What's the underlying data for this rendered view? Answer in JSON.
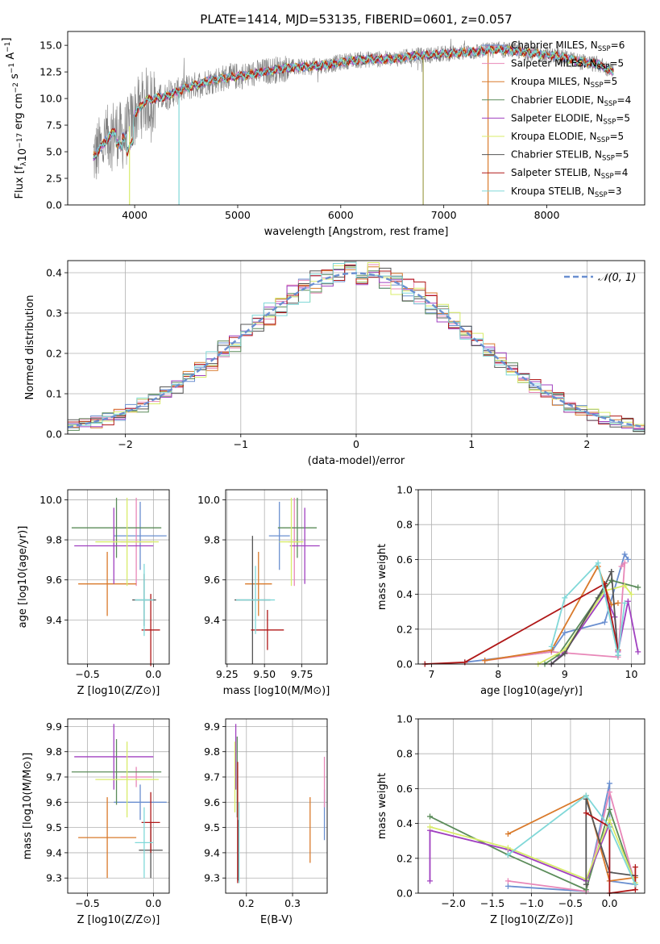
{
  "figure": {
    "title": "PLATE=1414, MJD=53135, FIBERID=0601, z=0.057"
  },
  "colors": {
    "grey_spectrum": "#808080",
    "model": [
      "#6a8fd0",
      "#e887b8",
      "#d97a2b",
      "#5b8c5a",
      "#a040c0",
      "#d8ec6a",
      "#555555",
      "#b01818",
      "#80d8d8"
    ]
  },
  "chart_data": [
    {
      "id": "spectrum",
      "type": "line",
      "title": "PLATE=1414, MJD=53135, FIBERID=0601, z=0.057",
      "xlabel": "wavelength [Angstrom, rest frame]",
      "ylabel": "Flux [f_λ10^-17 erg cm^-2 s^-1 A^-1]",
      "xlim": [
        3350,
        8950
      ],
      "ylim": [
        0,
        16.3
      ],
      "xticks": [
        4000,
        5000,
        6000,
        7000,
        8000
      ],
      "yticks": [
        0.0,
        2.5,
        5.0,
        7.5,
        10.0,
        12.5,
        15.0
      ],
      "grid": false,
      "legend_position": "right",
      "legend": [
        {
          "label": "Chabrier MILES, N",
          "sub": "SSP",
          "tail": "=6",
          "color": "#6a8fd0"
        },
        {
          "label": "Salpeter MILES, N",
          "sub": "SSP",
          "tail": "=5",
          "color": "#e887b8"
        },
        {
          "label": "Kroupa MILES, N",
          "sub": "SSP",
          "tail": "=5",
          "color": "#d97a2b"
        },
        {
          "label": "Chabrier ELODIE, N",
          "sub": "SSP",
          "tail": "=4",
          "color": "#5b8c5a"
        },
        {
          "label": "Salpeter ELODIE, N",
          "sub": "SSP",
          "tail": "=5",
          "color": "#a040c0"
        },
        {
          "label": "Kroupa ELODIE, N",
          "sub": "SSP",
          "tail": "=5",
          "color": "#d8ec6a"
        },
        {
          "label": "Chabrier STELIB, N",
          "sub": "SSP",
          "tail": "=5",
          "color": "#555555"
        },
        {
          "label": "Salpeter STELIB, N",
          "sub": "SSP",
          "tail": "=4",
          "color": "#b01818"
        },
        {
          "label": "Kroupa STELIB, N",
          "sub": "SSP",
          "tail": "=3",
          "color": "#80d8d8"
        }
      ],
      "continuum": {
        "x": [
          3600,
          3700,
          3800,
          3900,
          4000,
          4100,
          4200,
          4300,
          4400,
          4500,
          4700,
          4900,
          5100,
          5300,
          5500,
          5700,
          5900,
          6100,
          6300,
          6500,
          6700,
          6900,
          7100,
          7300,
          7500,
          7700,
          7900,
          8100,
          8300,
          8500,
          8650
        ],
        "y": [
          4.5,
          5.8,
          7.0,
          6.3,
          8.5,
          9.8,
          10.0,
          10.2,
          10.6,
          11.0,
          11.6,
          12.0,
          12.2,
          12.6,
          12.9,
          13.0,
          13.2,
          13.6,
          13.7,
          13.7,
          14.0,
          14.1,
          14.3,
          14.4,
          14.6,
          14.5,
          14.2,
          14.0,
          13.5,
          13.2,
          12.5
        ]
      },
      "drops": [
        {
          "x": 3950,
          "color": "#d8ec6a"
        },
        {
          "x": 4430,
          "color": "#80d8d8"
        },
        {
          "x": 6800,
          "color": "#a0a050"
        },
        {
          "x": 7430,
          "color": "#d97a2b"
        }
      ]
    },
    {
      "id": "residuals",
      "type": "area",
      "xlabel": "(data-model)/error",
      "ylabel": "Normed distribution",
      "xlim": [
        -2.5,
        2.5
      ],
      "ylim": [
        0,
        0.43
      ],
      "xticks": [
        -2,
        -1,
        0,
        1,
        2
      ],
      "xticklabels": [
        "−2",
        "−1",
        "0",
        "1",
        "2"
      ],
      "yticks": [
        0.0,
        0.1,
        0.2,
        0.3,
        0.4
      ],
      "grid": true,
      "legend_position": "top-right",
      "legend": [
        {
          "label": "𝒩(0, 1)",
          "color": "#6a8fd0",
          "dashed": true
        }
      ],
      "bin_width": 0.1
    },
    {
      "id": "age_vs_Z",
      "type": "scatter",
      "xlabel": "Z [log10(Z/Z⊙)]",
      "ylabel": "age  [log10(age/yr)]",
      "xlim": [
        -0.65,
        0.12
      ],
      "ylim": [
        9.18,
        10.05
      ],
      "xticks": [
        -0.5,
        0.0
      ],
      "xticklabels": [
        "−0.5",
        "0.0"
      ],
      "yticks": [
        9.4,
        9.6,
        9.8,
        10.0
      ],
      "grid": true,
      "points": [
        {
          "x": -0.1,
          "xerr": 0.2,
          "y": 9.82,
          "yerr": 0.17,
          "color": "#6a8fd0"
        },
        {
          "x": -0.13,
          "xerr": 0.12,
          "y": 9.79,
          "yerr": 0.22,
          "color": "#e887b8"
        },
        {
          "x": -0.35,
          "xerr": 0.22,
          "y": 9.58,
          "yerr": 0.16,
          "color": "#d97a2b"
        },
        {
          "x": -0.28,
          "xerr": 0.34,
          "y": 9.86,
          "yerr": 0.15,
          "color": "#5b8c5a"
        },
        {
          "x": -0.3,
          "xerr": 0.3,
          "y": 9.77,
          "yerr": 0.19,
          "color": "#a040c0"
        },
        {
          "x": -0.2,
          "xerr": 0.24,
          "y": 9.79,
          "yerr": 0.22,
          "color": "#d8ec6a"
        },
        {
          "x": -0.07,
          "xerr": 0.09,
          "y": 9.5,
          "yerr": 0.13,
          "color": "#555555"
        },
        {
          "x": -0.02,
          "xerr": 0.07,
          "y": 9.35,
          "yerr": 0.18,
          "color": "#b01818"
        },
        {
          "x": -0.07,
          "xerr": 0.07,
          "y": 9.5,
          "yerr": 0.18,
          "color": "#80d8d8"
        }
      ]
    },
    {
      "id": "age_vs_mass",
      "type": "scatter",
      "xlabel": "mass [log10(M/M⊙)]",
      "ylabel": "",
      "xlim": [
        9.24,
        9.92
      ],
      "ylim": [
        9.18,
        10.05
      ],
      "xticks": [
        9.25,
        9.5,
        9.75
      ],
      "yticks": [
        9.4,
        9.6,
        9.8,
        10.0
      ],
      "grid": true,
      "points": [
        {
          "x": 9.6,
          "xerr": 0.07,
          "y": 9.82,
          "yerr": 0.17,
          "color": "#6a8fd0"
        },
        {
          "x": 9.7,
          "xerr": 0.04,
          "y": 9.79,
          "yerr": 0.22,
          "color": "#e887b8"
        },
        {
          "x": 9.46,
          "xerr": 0.09,
          "y": 9.58,
          "yerr": 0.16,
          "color": "#d97a2b"
        },
        {
          "x": 9.72,
          "xerr": 0.13,
          "y": 9.86,
          "yerr": 0.15,
          "color": "#5b8c5a"
        },
        {
          "x": 9.77,
          "xerr": 0.1,
          "y": 9.77,
          "yerr": 0.19,
          "color": "#a040c0"
        },
        {
          "x": 9.68,
          "xerr": 0.08,
          "y": 9.79,
          "yerr": 0.22,
          "color": "#d8ec6a"
        },
        {
          "x": 9.42,
          "xerr": 0.12,
          "y": 9.5,
          "yerr": 0.32,
          "color": "#555555"
        },
        {
          "x": 9.52,
          "xerr": 0.11,
          "y": 9.35,
          "yerr": 0.1,
          "color": "#b01818"
        },
        {
          "x": 9.44,
          "xerr": 0.13,
          "y": 9.5,
          "yerr": 0.17,
          "color": "#80d8d8"
        }
      ]
    },
    {
      "id": "weight_vs_age",
      "type": "line",
      "xlabel": "age  [log10(age/yr)]",
      "ylabel": "mass weight",
      "xlim": [
        6.8,
        10.2
      ],
      "ylim": [
        0,
        1.0
      ],
      "xticks": [
        7,
        8,
        9,
        10
      ],
      "yticks": [
        0.0,
        0.2,
        0.4,
        0.6,
        0.8,
        1.0
      ],
      "grid": true,
      "series": [
        {
          "color": "#6a8fd0",
          "x": [
            7.5,
            8.8,
            9.0,
            9.6,
            9.9,
            9.95
          ],
          "y": [
            0.01,
            0.07,
            0.18,
            0.24,
            0.63,
            0.6
          ]
        },
        {
          "color": "#e887b8",
          "x": [
            7.8,
            8.8,
            9.8,
            9.9,
            9.85
          ],
          "y": [
            0.02,
            0.07,
            0.04,
            0.58,
            0.56
          ]
        },
        {
          "color": "#d97a2b",
          "x": [
            7.8,
            8.8,
            9.5,
            9.7,
            9.8
          ],
          "y": [
            0.02,
            0.08,
            0.56,
            0.34,
            0.35
          ]
        },
        {
          "color": "#5b8c5a",
          "x": [
            8.7,
            8.9,
            9.5,
            9.7,
            10.1
          ],
          "y": [
            0.0,
            0.05,
            0.38,
            0.48,
            0.44
          ]
        },
        {
          "color": "#a040c0",
          "x": [
            8.8,
            9.0,
            9.6,
            9.75,
            9.8,
            9.95,
            10.1
          ],
          "y": [
            0.0,
            0.07,
            0.4,
            0.27,
            0.07,
            0.36,
            0.07
          ]
        },
        {
          "color": "#d8ec6a",
          "x": [
            8.6,
            9.0,
            9.6,
            9.9,
            10.0
          ],
          "y": [
            0.0,
            0.08,
            0.42,
            0.45,
            0.4
          ]
        },
        {
          "color": "#555555",
          "x": [
            8.8,
            9.0,
            9.6,
            9.7,
            9.8
          ],
          "y": [
            0.0,
            0.06,
            0.45,
            0.53,
            0.05
          ]
        },
        {
          "color": "#b01818",
          "x": [
            6.9,
            7.5,
            9.6,
            9.8
          ],
          "y": [
            0.0,
            0.01,
            0.46,
            0.08
          ]
        },
        {
          "color": "#80d8d8",
          "x": [
            8.8,
            9.0,
            9.5,
            9.8,
            9.9
          ],
          "y": [
            0.1,
            0.38,
            0.58,
            0.05,
            0.35
          ]
        }
      ]
    },
    {
      "id": "mass_vs_Z",
      "type": "scatter",
      "xlabel": "Z [log10(Z/Z⊙)]",
      "ylabel": "mass [log10(M/M⊙)]",
      "xlim": [
        -0.65,
        0.12
      ],
      "ylim": [
        9.24,
        9.93
      ],
      "xticks": [
        -0.5,
        0.0
      ],
      "xticklabels": [
        "−0.5",
        "0.0"
      ],
      "yticks": [
        9.3,
        9.4,
        9.5,
        9.6,
        9.7,
        9.8,
        9.9
      ],
      "grid": true,
      "points": [
        {
          "x": -0.1,
          "xerr": 0.2,
          "y": 9.6,
          "yerr": 0.07,
          "color": "#6a8fd0"
        },
        {
          "x": -0.13,
          "xerr": 0.12,
          "y": 9.7,
          "yerr": 0.04,
          "color": "#e887b8"
        },
        {
          "x": -0.35,
          "xerr": 0.22,
          "y": 9.46,
          "yerr": 0.16,
          "color": "#d97a2b"
        },
        {
          "x": -0.28,
          "xerr": 0.34,
          "y": 9.72,
          "yerr": 0.13,
          "color": "#5b8c5a"
        },
        {
          "x": -0.3,
          "xerr": 0.3,
          "y": 9.78,
          "yerr": 0.13,
          "color": "#a040c0"
        },
        {
          "x": -0.2,
          "xerr": 0.24,
          "y": 9.69,
          "yerr": 0.15,
          "color": "#d8ec6a"
        },
        {
          "x": -0.02,
          "xerr": 0.09,
          "y": 9.41,
          "yerr": 0.11,
          "color": "#555555"
        },
        {
          "x": -0.02,
          "xerr": 0.07,
          "y": 9.52,
          "yerr": 0.12,
          "color": "#b01818"
        },
        {
          "x": -0.07,
          "xerr": 0.07,
          "y": 9.44,
          "yerr": 0.14,
          "color": "#80d8d8"
        }
      ]
    },
    {
      "id": "mass_vs_ebv",
      "type": "scatter",
      "xlabel": "E(B-V)",
      "ylabel": "",
      "xlim": [
        0.155,
        0.375
      ],
      "ylim": [
        9.24,
        9.93
      ],
      "xticks": [
        0.2,
        0.3
      ],
      "yticks": [
        9.3,
        9.4,
        9.5,
        9.6,
        9.7,
        9.8,
        9.9
      ],
      "grid": true,
      "points": [
        {
          "x": 0.369,
          "y": 9.55,
          "yerr": 0.1,
          "color": "#6a8fd0"
        },
        {
          "x": 0.369,
          "y": 9.68,
          "yerr": 0.1,
          "color": "#e887b8"
        },
        {
          "x": 0.338,
          "y": 9.49,
          "yerr": 0.13,
          "color": "#d97a2b"
        },
        {
          "x": 0.18,
          "y": 9.7,
          "yerr": 0.16,
          "color": "#5b8c5a"
        },
        {
          "x": 0.177,
          "y": 9.78,
          "yerr": 0.13,
          "color": "#a040c0"
        },
        {
          "x": 0.175,
          "y": 9.7,
          "yerr": 0.14,
          "color": "#d8ec6a"
        },
        {
          "x": 0.182,
          "y": 9.41,
          "yerr": 0.12,
          "color": "#555555"
        },
        {
          "x": 0.181,
          "y": 9.52,
          "yerr": 0.24,
          "color": "#b01818"
        },
        {
          "x": 0.184,
          "y": 9.44,
          "yerr": 0.16,
          "color": "#80d8d8"
        }
      ]
    },
    {
      "id": "weight_vs_Z",
      "type": "line",
      "xlabel": "Z [log10(Z/Z⊙)]",
      "ylabel": "mass weight",
      "xlim": [
        -2.45,
        0.45
      ],
      "ylim": [
        0,
        1.0
      ],
      "xticks": [
        -2.0,
        -1.5,
        -1.0,
        -0.5,
        0.0
      ],
      "xticklabels": [
        "−2.0",
        "−1.5",
        "−1.0",
        "−0.5",
        "0.0"
      ],
      "yticks": [
        0.0,
        0.2,
        0.4,
        0.6,
        0.8,
        1.0
      ],
      "grid": true,
      "series": [
        {
          "color": "#6a8fd0",
          "x": [
            -1.3,
            -0.3,
            0.0,
            0.0,
            0.33
          ],
          "y": [
            0.04,
            0.01,
            0.63,
            0.07,
            0.05
          ]
        },
        {
          "color": "#e887b8",
          "x": [
            -1.3,
            -0.3,
            0.0,
            0.33
          ],
          "y": [
            0.07,
            0.01,
            0.58,
            0.05
          ]
        },
        {
          "color": "#d97a2b",
          "x": [
            -1.3,
            -0.3,
            0.0,
            0.33
          ],
          "y": [
            0.34,
            0.56,
            0.07,
            0.09
          ]
        },
        {
          "color": "#5b8c5a",
          "x": [
            -2.3,
            -1.3,
            -0.3,
            0.0,
            0.33
          ],
          "y": [
            0.44,
            0.22,
            0.02,
            0.48,
            0.05
          ]
        },
        {
          "color": "#a040c0",
          "x": [
            -2.3,
            -2.3,
            -1.3,
            -0.3,
            0.0
          ],
          "y": [
            0.07,
            0.36,
            0.25,
            0.07,
            0.4
          ]
        },
        {
          "color": "#d8ec6a",
          "x": [
            -2.3,
            -1.3,
            -0.3,
            0.0,
            0.33
          ],
          "y": [
            0.38,
            0.26,
            0.08,
            0.42,
            0.06
          ]
        },
        {
          "color": "#555555",
          "x": [
            -0.3,
            -0.3,
            0.0,
            0.33
          ],
          "y": [
            0.05,
            0.54,
            0.12,
            0.1
          ]
        },
        {
          "color": "#b01818",
          "x": [
            -0.3,
            0.0,
            0.0,
            0.33,
            0.33
          ],
          "y": [
            0.46,
            0.38,
            0.0,
            0.02,
            0.15
          ]
        },
        {
          "color": "#80d8d8",
          "x": [
            -1.3,
            -0.3,
            0.0,
            0.33
          ],
          "y": [
            0.22,
            0.56,
            0.38,
            0.05
          ]
        }
      ]
    }
  ]
}
